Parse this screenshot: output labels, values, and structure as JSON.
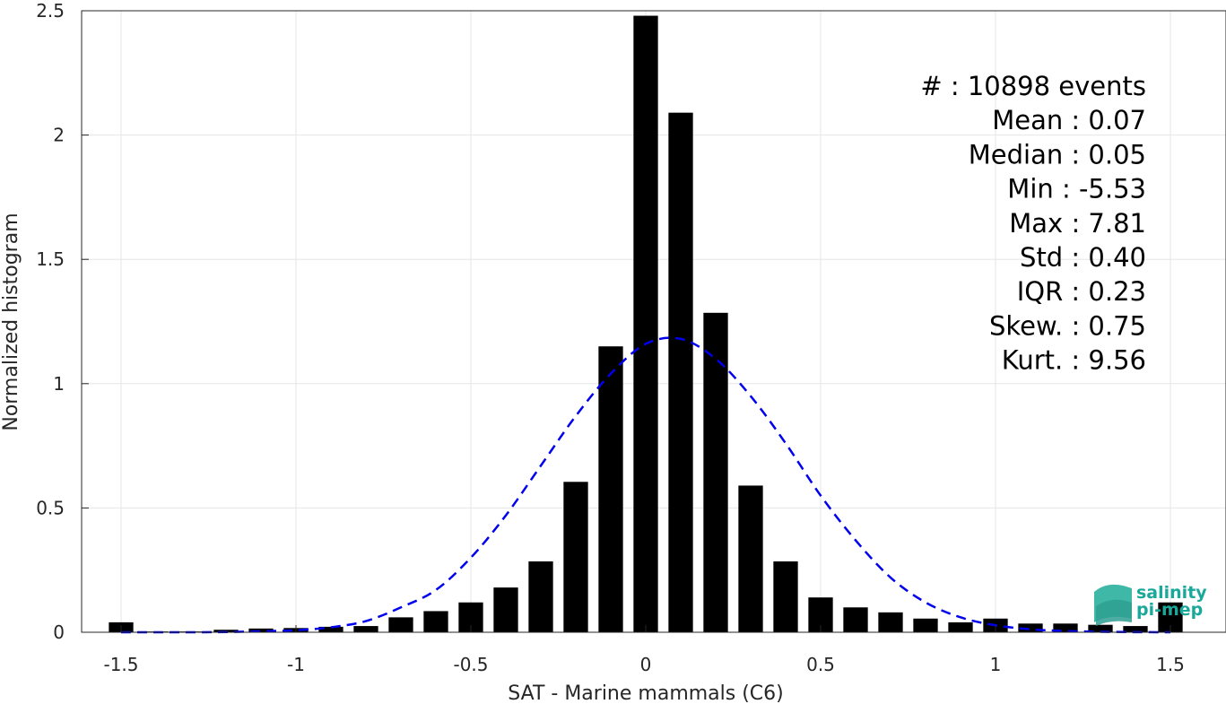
{
  "chart_data": {
    "type": "bar",
    "xlabel": "SAT - Marine mammals (C6)",
    "ylabel": "Normalized histogram",
    "xlim": [
      -1.6,
      1.6
    ],
    "ylim": [
      0,
      2.5
    ],
    "grid": true,
    "x_ticks": [
      -1.5,
      -1,
      -0.5,
      0,
      0.5,
      1,
      1.5
    ],
    "x_tick_labels": [
      "-1.5",
      "-1",
      "-0.5",
      "0",
      "0.5",
      "1",
      "1.5"
    ],
    "y_ticks": [
      0,
      0.5,
      1,
      1.5,
      2,
      2.5
    ],
    "y_tick_labels": [
      "0",
      "0.5",
      "1",
      "1.5",
      "2",
      "2.5"
    ],
    "bar_width": 0.07,
    "bars": {
      "x": [
        -1.5,
        -1.4,
        -1.3,
        -1.2,
        -1.1,
        -1.0,
        -0.9,
        -0.8,
        -0.7,
        -0.6,
        -0.5,
        -0.4,
        -0.3,
        -0.2,
        -0.1,
        0.0,
        0.1,
        0.2,
        0.3,
        0.4,
        0.5,
        0.6,
        0.7,
        0.8,
        0.9,
        1.0,
        1.1,
        1.2,
        1.3,
        1.4,
        1.5
      ],
      "values": [
        0.04,
        0.003,
        0.003,
        0.01,
        0.015,
        0.017,
        0.022,
        0.025,
        0.06,
        0.085,
        0.12,
        0.18,
        0.285,
        0.605,
        1.15,
        2.48,
        2.09,
        1.285,
        0.59,
        0.285,
        0.14,
        0.1,
        0.08,
        0.055,
        0.04,
        0.055,
        0.035,
        0.035,
        0.03,
        0.025,
        0.12
      ],
      "color": "#000000"
    },
    "fit_curve": {
      "style": "dashed",
      "color": "#0000ee",
      "x": [
        -1.5,
        -1.4,
        -1.3,
        -1.2,
        -1.1,
        -1.0,
        -0.9,
        -0.8,
        -0.7,
        -0.6,
        -0.5,
        -0.4,
        -0.3,
        -0.2,
        -0.1,
        0.0,
        0.1,
        0.2,
        0.3,
        0.4,
        0.5,
        0.6,
        0.7,
        0.8,
        0.9,
        1.0,
        1.1,
        1.2,
        1.3,
        1.4,
        1.5
      ],
      "values": [
        0.0,
        0.0,
        0.0,
        0.001,
        0.004,
        0.008,
        0.02,
        0.045,
        0.1,
        0.17,
        0.3,
        0.47,
        0.67,
        0.87,
        1.04,
        1.16,
        1.18,
        1.1,
        0.95,
        0.76,
        0.55,
        0.37,
        0.22,
        0.12,
        0.06,
        0.028,
        0.012,
        0.005,
        0.002,
        0.0005,
        0.0
      ]
    },
    "stats": [
      "#  : 10898 events",
      "Mean : 0.07",
      "Median : 0.05",
      "Min : -5.53",
      "Max : 7.81",
      "Std : 0.40",
      "IQR : 0.23",
      "Skew. : 0.75",
      "Kurt. : 9.56"
    ]
  },
  "logo": {
    "line1": "salinity",
    "line2": "pi-mep",
    "color": "#1aa89a"
  }
}
